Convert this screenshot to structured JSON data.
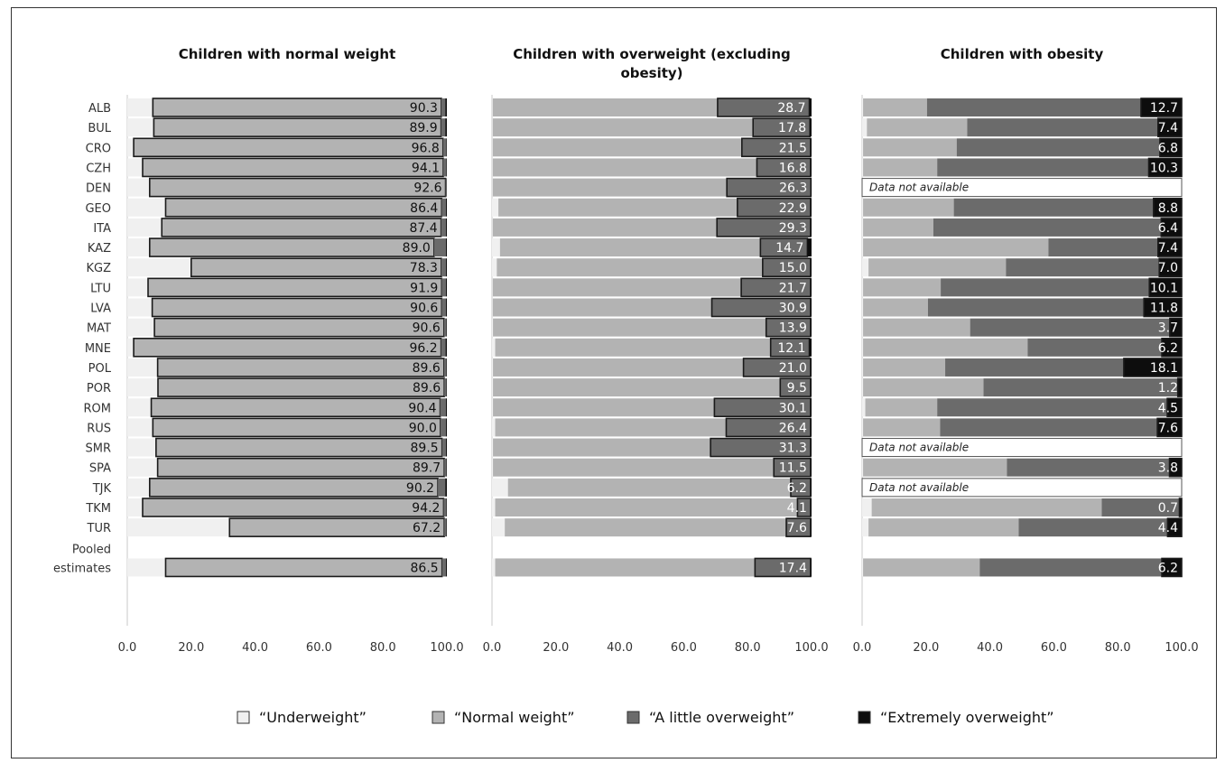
{
  "chart_data": {
    "type": "bar",
    "stacked": true,
    "orientation": "horizontal",
    "categories": [
      "ALB",
      "BUL",
      "CRO",
      "CZH",
      "DEN",
      "GEO",
      "ITA",
      "KAZ",
      "KGZ",
      "LTU",
      "LVA",
      "MAT",
      "MNE",
      "POL",
      "POR",
      "ROM",
      "RUS",
      "SMR",
      "SPA",
      "TJK",
      "TKM",
      "TUR",
      "Pooled estimates"
    ],
    "category_display": [
      [
        "ALB"
      ],
      [
        "BUL"
      ],
      [
        "CRO"
      ],
      [
        "CZH"
      ],
      [
        "DEN"
      ],
      [
        "GEO"
      ],
      [
        "ITA"
      ],
      [
        "KAZ"
      ],
      [
        "KGZ"
      ],
      [
        "LTU"
      ],
      [
        "LVA"
      ],
      [
        "MAT"
      ],
      [
        "MNE"
      ],
      [
        "POL"
      ],
      [
        "POR"
      ],
      [
        "ROM"
      ],
      [
        "RUS"
      ],
      [
        "SMR"
      ],
      [
        "SPA"
      ],
      [
        "TJK"
      ],
      [
        "TKM"
      ],
      [
        "TUR"
      ],
      [
        "Pooled",
        "estimates"
      ]
    ],
    "xlim": [
      0,
      100
    ],
    "ticks": [
      "0.0",
      "20.0",
      "40.0",
      "60.0",
      "80.0",
      "100.0"
    ],
    "not_available_label": "Data not available",
    "legend": {
      "placement": "bottom",
      "items": [
        {
          "label": "“Underweight”",
          "color": "#f0f0f0"
        },
        {
          "label": "“Normal weight”",
          "color": "#b3b3b3"
        },
        {
          "label": "“A little overweight”",
          "color": "#6b6b6b"
        },
        {
          "label": "“Extremely overweight”",
          "color": "#0d0d0d"
        }
      ]
    },
    "colors": {
      "underweight": "#f0f0f0",
      "normal": "#b3b3b3",
      "little": "#6b6b6b",
      "extreme": "#0d0d0d"
    },
    "panels": [
      {
        "title": [
          "Children with normal weight"
        ],
        "highlight": "normal",
        "rows": [
          {
            "underweight": 8.0,
            "normal": 90.3,
            "little": 1.2,
            "extreme": 0.5
          },
          {
            "underweight": 8.3,
            "normal": 89.9,
            "little": 1.3,
            "extreme": 0.5
          },
          {
            "underweight": 2.0,
            "normal": 96.8,
            "little": 1.0,
            "extreme": 0.2
          },
          {
            "underweight": 4.8,
            "normal": 94.1,
            "little": 0.9,
            "extreme": 0.2
          },
          {
            "underweight": 7.0,
            "normal": 92.6,
            "little": 0.3,
            "extreme": 0.1
          },
          {
            "underweight": 12.0,
            "normal": 86.4,
            "little": 1.3,
            "extreme": 0.3
          },
          {
            "underweight": 10.8,
            "normal": 87.4,
            "little": 1.5,
            "extreme": 0.3
          },
          {
            "underweight": 7.0,
            "normal": 89.0,
            "little": 3.7,
            "extreme": 0.3
          },
          {
            "underweight": 20.0,
            "normal": 78.3,
            "little": 1.4,
            "extreme": 0.3
          },
          {
            "underweight": 6.5,
            "normal": 91.9,
            "little": 1.3,
            "extreme": 0.3
          },
          {
            "underweight": 7.8,
            "normal": 90.6,
            "little": 1.3,
            "extreme": 0.3
          },
          {
            "underweight": 8.5,
            "normal": 90.6,
            "little": 0.7,
            "extreme": 0.2
          },
          {
            "underweight": 2.0,
            "normal": 96.2,
            "little": 1.4,
            "extreme": 0.4
          },
          {
            "underweight": 9.5,
            "normal": 89.6,
            "little": 0.7,
            "extreme": 0.2
          },
          {
            "underweight": 9.6,
            "normal": 89.6,
            "little": 0.6,
            "extreme": 0.2
          },
          {
            "underweight": 7.5,
            "normal": 90.4,
            "little": 1.8,
            "extreme": 0.3
          },
          {
            "underweight": 8.0,
            "normal": 90.0,
            "little": 1.7,
            "extreme": 0.3
          },
          {
            "underweight": 9.0,
            "normal": 89.5,
            "little": 1.2,
            "extreme": 0.3
          },
          {
            "underweight": 9.5,
            "normal": 89.7,
            "little": 0.6,
            "extreme": 0.2
          },
          {
            "underweight": 7.0,
            "normal": 90.2,
            "little": 2.3,
            "extreme": 0.5
          },
          {
            "underweight": 4.8,
            "normal": 94.2,
            "little": 0.8,
            "extreme": 0.2
          },
          {
            "underweight": 32.0,
            "normal": 67.2,
            "little": 0.6,
            "extreme": 0.2
          },
          null,
          {
            "underweight": 12.0,
            "normal": 86.5,
            "little": 1.2,
            "extreme": 0.3
          }
        ]
      },
      {
        "title": [
          "Children with overweight (excluding",
          "obesity)"
        ],
        "highlight": "little",
        "rows": [
          {
            "underweight": 0.2,
            "normal": 70.4,
            "little": 28.7,
            "extreme": 0.7
          },
          {
            "underweight": 0.2,
            "normal": 81.5,
            "little": 17.8,
            "extreme": 0.5
          },
          {
            "underweight": 0.2,
            "normal": 78.0,
            "little": 21.5,
            "extreme": 0.3
          },
          {
            "underweight": 0.2,
            "normal": 82.7,
            "little": 16.8,
            "extreme": 0.3
          },
          {
            "underweight": 0.2,
            "normal": 73.3,
            "little": 26.3,
            "extreme": 0.2
          },
          {
            "underweight": 2.0,
            "normal": 74.8,
            "little": 22.9,
            "extreme": 0.3
          },
          {
            "underweight": 0.2,
            "normal": 70.2,
            "little": 29.3,
            "extreme": 0.3
          },
          {
            "underweight": 2.5,
            "normal": 81.5,
            "little": 14.7,
            "extreme": 1.3
          },
          {
            "underweight": 1.5,
            "normal": 83.2,
            "little": 15.0,
            "extreme": 0.3
          },
          {
            "underweight": 0.2,
            "normal": 77.8,
            "little": 21.7,
            "extreme": 0.3
          },
          {
            "underweight": 0.2,
            "normal": 68.6,
            "little": 30.9,
            "extreme": 0.3
          },
          {
            "underweight": 0.3,
            "normal": 85.5,
            "little": 13.9,
            "extreme": 0.3
          },
          {
            "underweight": 1.0,
            "normal": 86.2,
            "little": 12.1,
            "extreme": 0.7
          },
          {
            "underweight": 0.3,
            "normal": 78.4,
            "little": 21.0,
            "extreme": 0.3
          },
          {
            "underweight": 0.3,
            "normal": 89.9,
            "little": 9.5,
            "extreme": 0.3
          },
          {
            "underweight": 0.3,
            "normal": 69.3,
            "little": 30.1,
            "extreme": 0.3
          },
          {
            "underweight": 1.0,
            "normal": 72.3,
            "little": 26.4,
            "extreme": 0.3
          },
          {
            "underweight": 0.3,
            "normal": 68.1,
            "little": 31.3,
            "extreme": 0.3
          },
          {
            "underweight": 0.3,
            "normal": 87.9,
            "little": 11.5,
            "extreme": 0.3
          },
          {
            "underweight": 5.0,
            "normal": 88.5,
            "little": 6.2,
            "extreme": 0.3
          },
          {
            "underweight": 1.0,
            "normal": 94.6,
            "little": 4.1,
            "extreme": 0.3
          },
          {
            "underweight": 4.0,
            "normal": 88.1,
            "little": 7.6,
            "extreme": 0.3
          },
          null,
          {
            "underweight": 1.0,
            "normal": 81.3,
            "little": 17.4,
            "extreme": 0.3
          }
        ]
      },
      {
        "title": [
          "Children with obesity"
        ],
        "highlight": "extreme",
        "rows": [
          {
            "underweight": 0.3,
            "normal": 20.0,
            "little": 67.0,
            "extreme": 12.7
          },
          {
            "underweight": 1.5,
            "normal": 31.4,
            "little": 59.7,
            "extreme": 7.4
          },
          {
            "underweight": 0.3,
            "normal": 29.3,
            "little": 63.6,
            "extreme": 6.8
          },
          {
            "underweight": 0.3,
            "normal": 23.2,
            "little": 66.2,
            "extreme": 10.3
          },
          null,
          {
            "underweight": 0.3,
            "normal": 28.4,
            "little": 62.5,
            "extreme": 8.8
          },
          {
            "underweight": 0.3,
            "normal": 22.0,
            "little": 71.3,
            "extreme": 6.4
          },
          {
            "underweight": 0.3,
            "normal": 58.0,
            "little": 34.3,
            "extreme": 7.4
          },
          {
            "underweight": 2.0,
            "normal": 43.0,
            "little": 48.0,
            "extreme": 7.0
          },
          {
            "underweight": 0.3,
            "normal": 24.3,
            "little": 65.3,
            "extreme": 10.1
          },
          {
            "underweight": 0.3,
            "normal": 20.3,
            "little": 67.6,
            "extreme": 11.8
          },
          {
            "underweight": 0.3,
            "normal": 33.5,
            "little": 62.5,
            "extreme": 3.7
          },
          {
            "underweight": 0.3,
            "normal": 51.5,
            "little": 42.0,
            "extreme": 6.2
          },
          {
            "underweight": 0.3,
            "normal": 25.7,
            "little": 55.9,
            "extreme": 18.1
          },
          {
            "underweight": 0.3,
            "normal": 37.7,
            "little": 60.8,
            "extreme": 1.2
          },
          {
            "underweight": 1.0,
            "normal": 22.5,
            "little": 72.0,
            "extreme": 4.5
          },
          {
            "underweight": 0.3,
            "normal": 24.1,
            "little": 68.0,
            "extreme": 7.6
          },
          null,
          {
            "underweight": 0.3,
            "normal": 45.0,
            "little": 50.9,
            "extreme": 3.8
          },
          null,
          {
            "underweight": 3.0,
            "normal": 72.0,
            "little": 24.3,
            "extreme": 0.7
          },
          {
            "underweight": 2.0,
            "normal": 47.0,
            "little": 46.6,
            "extreme": 4.4
          },
          null,
          {
            "underweight": 0.3,
            "normal": 36.5,
            "little": 57.0,
            "extreme": 6.2
          }
        ]
      }
    ],
    "value_labels": [
      [
        "90.3",
        "89.9",
        "96.8",
        "94.1",
        "92.6",
        "86.4",
        "87.4",
        "89.0",
        "78.3",
        "91.9",
        "90.6",
        "90.6",
        "96.2",
        "89.6",
        "89.6",
        "90.4",
        "90.0",
        "89.5",
        "89.7",
        "90.2",
        "94.2",
        "67.2",
        null,
        "86.5"
      ],
      [
        "28.7",
        "17.8",
        "21.5",
        "16.8",
        "26.3",
        "22.9",
        "29.3",
        "14.7",
        "15.0",
        "21.7",
        "30.9",
        "13.9",
        "12.1",
        "21.0",
        "9.5",
        "30.1",
        "26.4",
        "31.3",
        "11.5",
        "6.2",
        "4.1",
        "7.6",
        null,
        "17.4"
      ],
      [
        "12.7",
        "7.4",
        "6.8",
        "10.3",
        null,
        "8.8",
        "6.4",
        "7.4",
        "7.0",
        "10.1",
        "11.8",
        "3.7",
        "6.2",
        "18.1",
        "1.2",
        "4.5",
        "7.6",
        null,
        "3.8",
        null,
        "0.7",
        "4.4",
        null,
        "6.2"
      ]
    ]
  }
}
